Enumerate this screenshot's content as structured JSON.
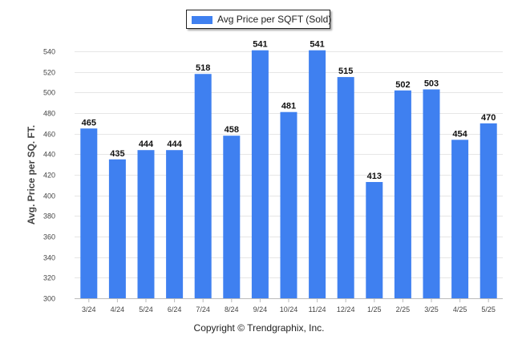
{
  "chart_data": {
    "type": "bar",
    "title": "",
    "xlabel": "",
    "ylabel": "Avg. Price per SQ. FT.",
    "categories": [
      "3/24",
      "4/24",
      "5/24",
      "6/24",
      "7/24",
      "8/24",
      "9/24",
      "10/24",
      "11/24",
      "12/24",
      "1/25",
      "2/25",
      "3/25",
      "4/25",
      "5/25"
    ],
    "series": [
      {
        "name": "Avg Price per SQFT (Sold)",
        "color": "#3f80f0",
        "values": [
          465,
          435,
          444,
          444,
          518,
          458,
          541,
          481,
          541,
          515,
          413,
          502,
          503,
          454,
          470
        ]
      }
    ],
    "ylim": [
      300,
      540
    ],
    "yticks": [
      300,
      320,
      340,
      360,
      380,
      400,
      420,
      440,
      460,
      480,
      500,
      520,
      540
    ],
    "grid": true,
    "legend_position": "top-center",
    "data_labels": true
  },
  "footer": {
    "copyright": "Copyright © Trendgraphix, Inc."
  }
}
